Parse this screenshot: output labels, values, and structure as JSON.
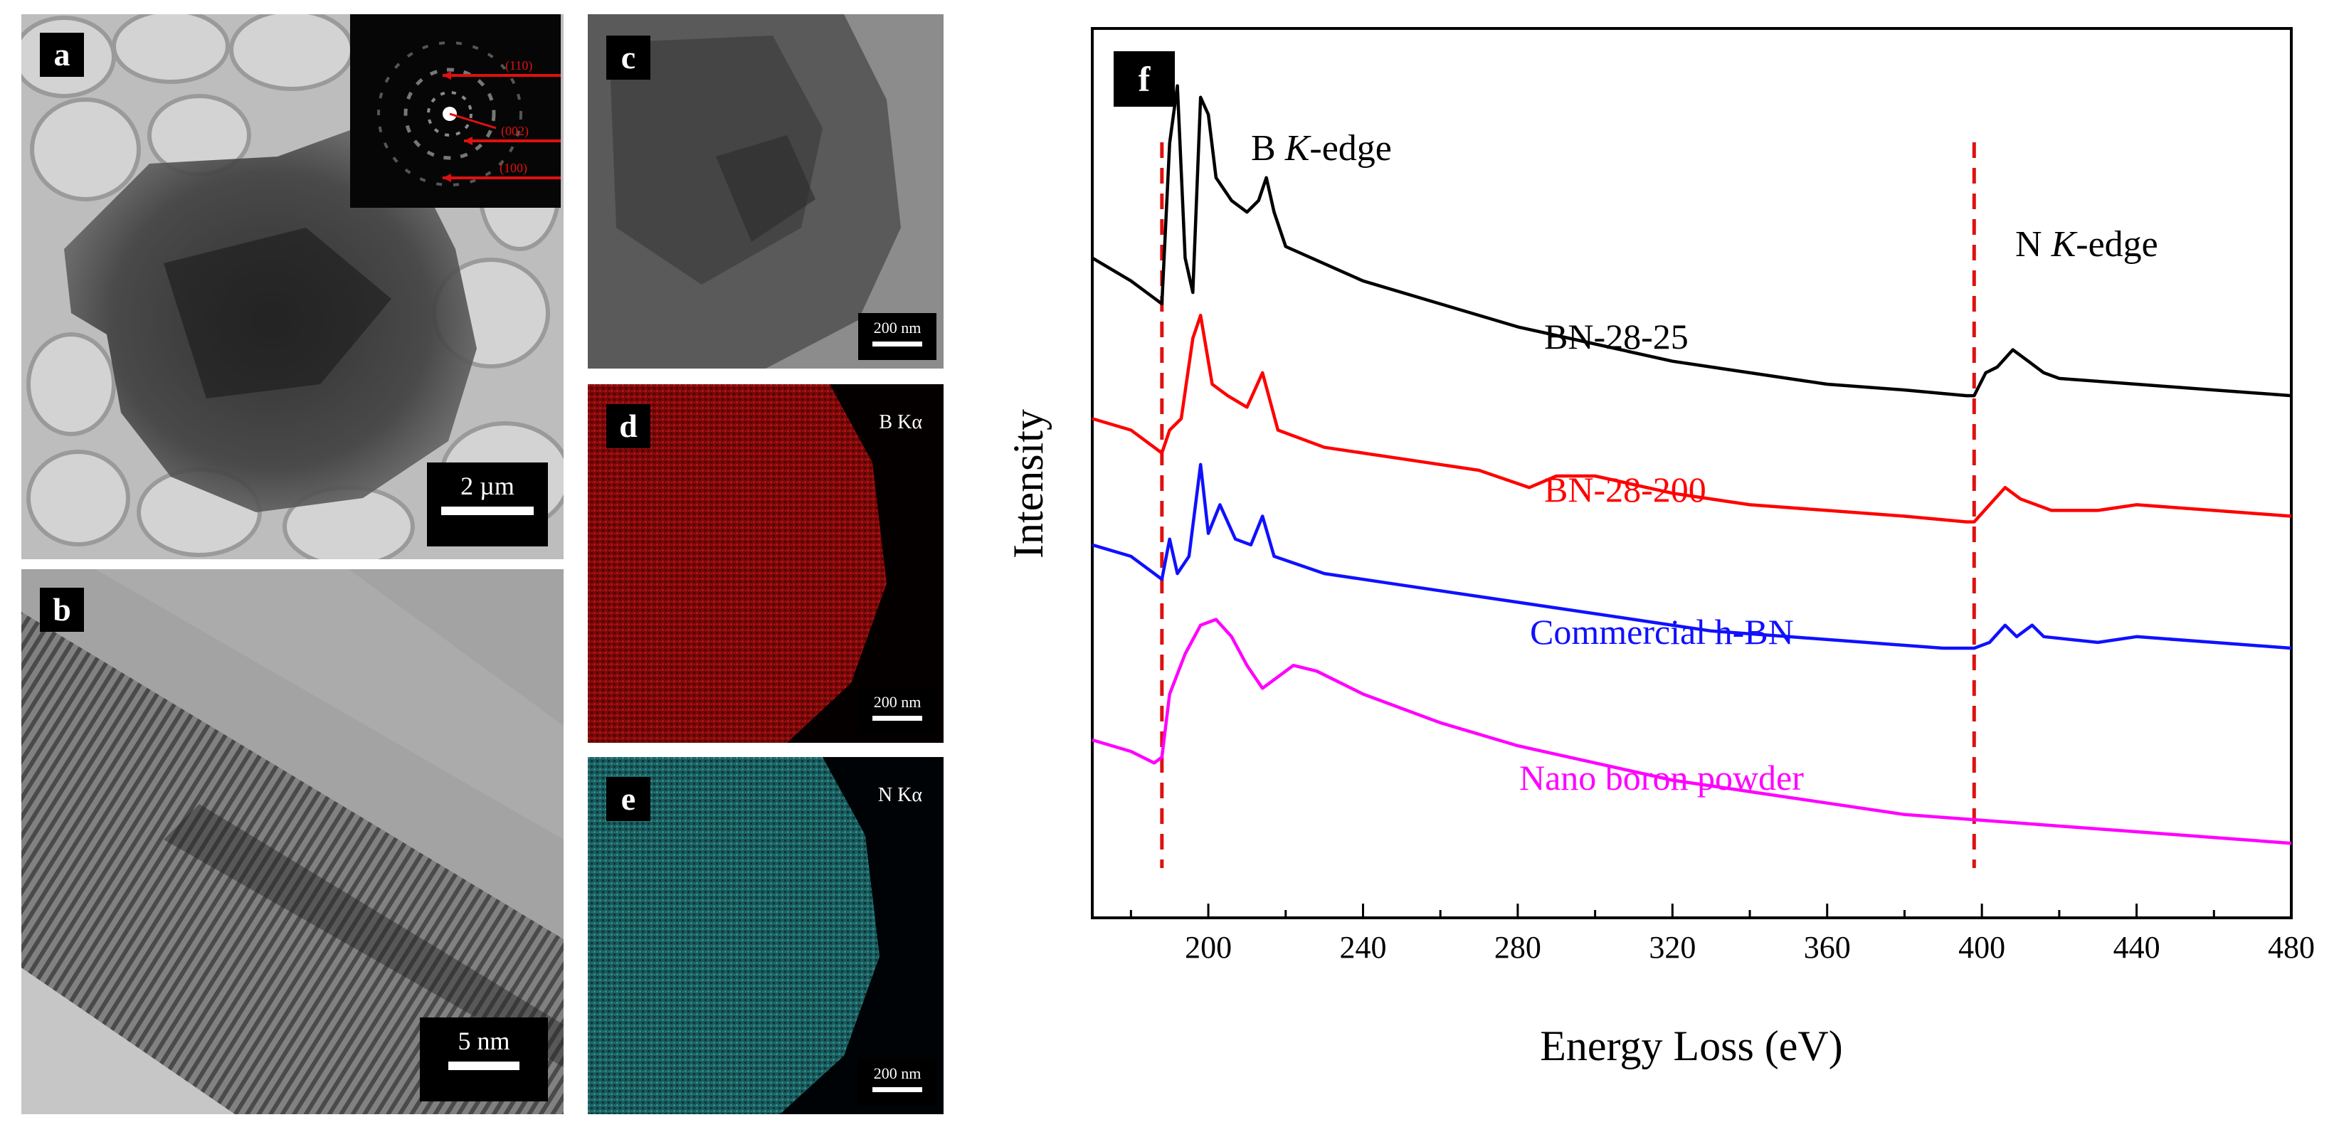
{
  "panels": {
    "a": {
      "label": "a",
      "scale": "2 µm",
      "saed": {
        "rings": [
          "(110)",
          "(002)",
          "(100)"
        ]
      }
    },
    "b": {
      "label": "b",
      "scale": "5 nm"
    },
    "c": {
      "label": "c",
      "scale": "200 nm"
    },
    "d": {
      "label": "d",
      "scale": "200 nm",
      "element": "B Kα"
    },
    "e": {
      "label": "e",
      "scale": "200 nm",
      "element": "N Kα"
    },
    "f": {
      "label": "f"
    }
  },
  "colors": {
    "map_red": "#8a0a0a",
    "map_cyan": "#1f6f72",
    "saed_red": "#e01010"
  },
  "chart_data": {
    "type": "line",
    "panel_label": "f",
    "xlabel": "Energy Loss (eV)",
    "ylabel": "Intensity",
    "xlim": [
      170,
      480
    ],
    "x_ticks": [
      200,
      240,
      280,
      320,
      360,
      400,
      440,
      480
    ],
    "y_ticks_shown": false,
    "annotations": [
      "B K-edge",
      "N K-edge"
    ],
    "edge_lines_eV": [
      188,
      398
    ],
    "series": [
      {
        "name": "BN-28-25",
        "color": "#000000",
        "points": [
          [
            170,
            0.7
          ],
          [
            180,
            0.66
          ],
          [
            186,
            0.63
          ],
          [
            188,
            0.62
          ],
          [
            190,
            0.9
          ],
          [
            192,
            1.0
          ],
          [
            194,
            0.7
          ],
          [
            196,
            0.64
          ],
          [
            198,
            0.98
          ],
          [
            200,
            0.95
          ],
          [
            202,
            0.84
          ],
          [
            206,
            0.8
          ],
          [
            210,
            0.78
          ],
          [
            213,
            0.8
          ],
          [
            215,
            0.84
          ],
          [
            217,
            0.78
          ],
          [
            220,
            0.72
          ],
          [
            240,
            0.66
          ],
          [
            260,
            0.62
          ],
          [
            280,
            0.58
          ],
          [
            300,
            0.55
          ],
          [
            320,
            0.52
          ],
          [
            340,
            0.5
          ],
          [
            360,
            0.48
          ],
          [
            380,
            0.47
          ],
          [
            396,
            0.46
          ],
          [
            398,
            0.46
          ],
          [
            401,
            0.5
          ],
          [
            404,
            0.51
          ],
          [
            408,
            0.54
          ],
          [
            412,
            0.52
          ],
          [
            416,
            0.5
          ],
          [
            420,
            0.49
          ],
          [
            440,
            0.48
          ],
          [
            460,
            0.47
          ],
          [
            480,
            0.46
          ]
        ]
      },
      {
        "name": "BN-28-200",
        "color": "#ff0000",
        "points": [
          [
            170,
            0.42
          ],
          [
            180,
            0.4
          ],
          [
            186,
            0.37
          ],
          [
            188,
            0.36
          ],
          [
            190,
            0.4
          ],
          [
            193,
            0.42
          ],
          [
            196,
            0.56
          ],
          [
            198,
            0.6
          ],
          [
            201,
            0.48
          ],
          [
            205,
            0.46
          ],
          [
            210,
            0.44
          ],
          [
            214,
            0.5
          ],
          [
            218,
            0.4
          ],
          [
            230,
            0.37
          ],
          [
            250,
            0.35
          ],
          [
            270,
            0.33
          ],
          [
            283,
            0.3
          ],
          [
            290,
            0.32
          ],
          [
            300,
            0.32
          ],
          [
            320,
            0.29
          ],
          [
            340,
            0.27
          ],
          [
            360,
            0.26
          ],
          [
            380,
            0.25
          ],
          [
            396,
            0.24
          ],
          [
            398,
            0.24
          ],
          [
            402,
            0.27
          ],
          [
            406,
            0.3
          ],
          [
            410,
            0.28
          ],
          [
            418,
            0.26
          ],
          [
            430,
            0.26
          ],
          [
            440,
            0.27
          ],
          [
            460,
            0.26
          ],
          [
            480,
            0.25
          ]
        ]
      },
      {
        "name": "Commercial h-BN",
        "color": "#1010ff",
        "points": [
          [
            170,
            0.2
          ],
          [
            180,
            0.18
          ],
          [
            186,
            0.15
          ],
          [
            188,
            0.14
          ],
          [
            190,
            0.21
          ],
          [
            192,
            0.15
          ],
          [
            195,
            0.18
          ],
          [
            198,
            0.34
          ],
          [
            200,
            0.22
          ],
          [
            203,
            0.27
          ],
          [
            207,
            0.21
          ],
          [
            211,
            0.2
          ],
          [
            214,
            0.25
          ],
          [
            217,
            0.18
          ],
          [
            230,
            0.15
          ],
          [
            250,
            0.13
          ],
          [
            270,
            0.11
          ],
          [
            290,
            0.09
          ],
          [
            310,
            0.07
          ],
          [
            330,
            0.05
          ],
          [
            350,
            0.04
          ],
          [
            370,
            0.03
          ],
          [
            390,
            0.02
          ],
          [
            398,
            0.02
          ],
          [
            402,
            0.03
          ],
          [
            406,
            0.06
          ],
          [
            409,
            0.04
          ],
          [
            413,
            0.06
          ],
          [
            416,
            0.04
          ],
          [
            430,
            0.03
          ],
          [
            440,
            0.04
          ],
          [
            460,
            0.03
          ],
          [
            480,
            0.02
          ]
        ]
      },
      {
        "name": "Nano boron powder",
        "color": "#ff00ff",
        "points": [
          [
            170,
            -0.14
          ],
          [
            180,
            -0.16
          ],
          [
            186,
            -0.18
          ],
          [
            188,
            -0.17
          ],
          [
            190,
            -0.06
          ],
          [
            194,
            0.01
          ],
          [
            198,
            0.06
          ],
          [
            202,
            0.07
          ],
          [
            206,
            0.04
          ],
          [
            210,
            -0.01
          ],
          [
            214,
            -0.05
          ],
          [
            218,
            -0.03
          ],
          [
            222,
            -0.01
          ],
          [
            228,
            -0.02
          ],
          [
            240,
            -0.06
          ],
          [
            260,
            -0.11
          ],
          [
            280,
            -0.15
          ],
          [
            300,
            -0.18
          ],
          [
            320,
            -0.21
          ],
          [
            340,
            -0.23
          ],
          [
            360,
            -0.25
          ],
          [
            380,
            -0.27
          ],
          [
            400,
            -0.28
          ],
          [
            420,
            -0.29
          ],
          [
            440,
            -0.3
          ],
          [
            460,
            -0.31
          ],
          [
            480,
            -0.32
          ]
        ]
      }
    ]
  }
}
